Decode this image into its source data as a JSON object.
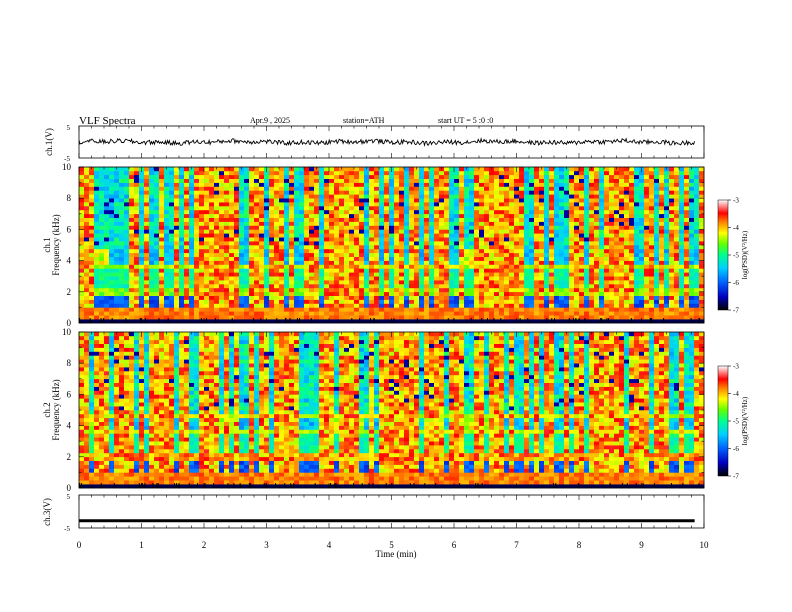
{
  "header": {
    "title": "VLF  Spectra",
    "date": "Apr.9  , 2025",
    "station": "station=ATH",
    "start": "start  UT  =    5  :0  :0"
  },
  "chart_data": [
    {
      "type": "line",
      "panel": "ch1-waveform",
      "ylabel": "ch.1(V)",
      "yticks": [
        "5",
        "-5"
      ],
      "ylim": [
        -5,
        5
      ],
      "xlim": [
        0,
        10
      ],
      "description_values": {
        "mean_level": 0.0,
        "amplitude_approx": 1.0
      }
    },
    {
      "type": "heatmap",
      "panel": "ch1-spectrogram",
      "ylabel_top": "ch.1",
      "ylabel": "Frequency  (kHz)",
      "yticks": [
        "0",
        "2",
        "4",
        "6",
        "8",
        "10"
      ],
      "ylim": [
        0,
        10
      ],
      "xlim": [
        0,
        10
      ],
      "colorbar": {
        "label": "log(PSD)(V²/Hz)",
        "ticks": [
          "-3",
          "-4",
          "-5",
          "-6",
          "-7"
        ],
        "range": [
          -7,
          -3
        ]
      }
    },
    {
      "type": "heatmap",
      "panel": "ch2-spectrogram",
      "ylabel_top": "ch.2",
      "ylabel": "Frequency  (kHz)",
      "yticks": [
        "0",
        "2",
        "4",
        "6",
        "8",
        "10"
      ],
      "ylim": [
        0,
        10
      ],
      "xlim": [
        0,
        10
      ],
      "colorbar": {
        "label": "log(PSD)(V²/Hz)",
        "ticks": [
          "-3",
          "-4",
          "-5",
          "-6",
          "-7"
        ],
        "range": [
          -7,
          -3
        ]
      }
    },
    {
      "type": "line",
      "panel": "ch3-waveform",
      "ylabel": "ch.3(V)",
      "yticks": [
        "5",
        "-5"
      ],
      "ylim": [
        -5,
        5
      ],
      "xlim": [
        0,
        10
      ],
      "description_values": {
        "mean_level": -2.8
      }
    }
  ],
  "xaxis": {
    "label": "Time  (min)",
    "ticks": [
      "0",
      "1",
      "2",
      "3",
      "4",
      "5",
      "6",
      "7",
      "8",
      "9",
      "10"
    ]
  },
  "colors": {
    "trace": "#000000",
    "cmap": [
      "#000000",
      "#0000c8",
      "#0050ff",
      "#00c8ff",
      "#00ffa0",
      "#50ff00",
      "#ffff00",
      "#ff8000",
      "#ff0000",
      "#ffffff"
    ]
  }
}
